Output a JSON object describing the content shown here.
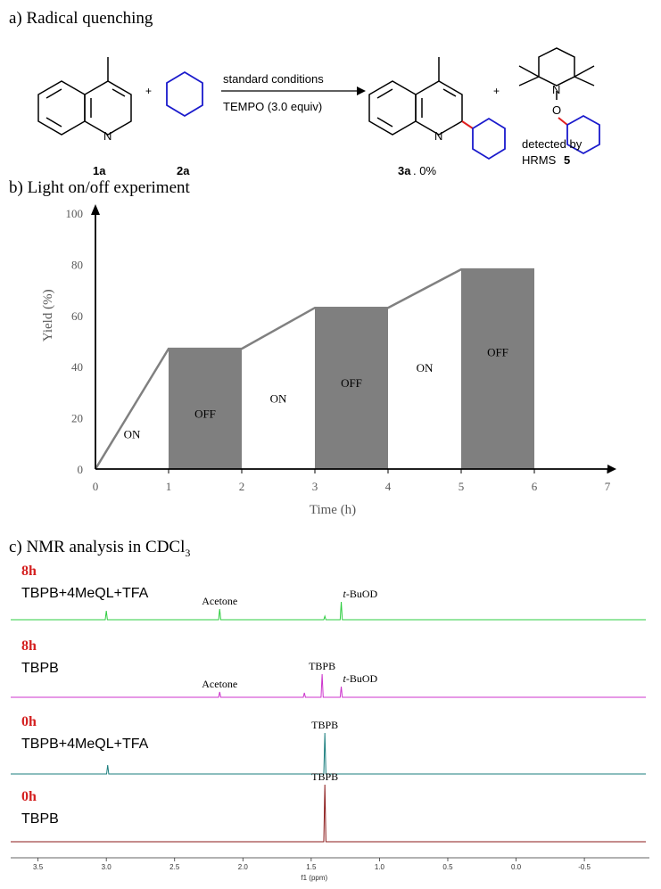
{
  "section_a": {
    "title": "a) Radical quenching",
    "reagent_1_label": "1a",
    "reagent_2_label": "2a",
    "plus": "+",
    "arrow_top": "standard conditions",
    "arrow_bottom": "TEMPO (3.0 equiv)",
    "product_label": "3a",
    "product_yield": ", 0%",
    "adduct_line1": "detected by",
    "adduct_line2": "HRMS",
    "adduct_label": "5",
    "atom_N": "N",
    "atom_O": "O"
  },
  "section_c": {
    "title_prefix": "c) NMR analysis in CDCl",
    "title_sub": "3"
  },
  "chart_data": [
    {
      "type": "area",
      "title": "b) Light on/off experiment",
      "xlabel": "Time (h)",
      "ylabel": "Yield (%)",
      "xlim": [
        0,
        7
      ],
      "ylim": [
        0,
        100
      ],
      "xticks": [
        "0",
        "1",
        "2",
        "3",
        "4",
        "5",
        "6",
        "7"
      ],
      "yticks": [
        "0",
        "20",
        "40",
        "60",
        "80",
        "100"
      ],
      "yield_points": [
        {
          "x": 0,
          "y": 0
        },
        {
          "x": 1,
          "y": 47
        },
        {
          "x": 2,
          "y": 47
        },
        {
          "x": 3,
          "y": 63
        },
        {
          "x": 4,
          "y": 63
        },
        {
          "x": 5,
          "y": 78
        },
        {
          "x": 6,
          "y": 78
        }
      ],
      "periods": [
        {
          "start": 0,
          "end": 1,
          "state": "ON",
          "label_y": 12
        },
        {
          "start": 1,
          "end": 2,
          "state": "OFF",
          "label_y": 20
        },
        {
          "start": 2,
          "end": 3,
          "state": "ON",
          "label_y": 26
        },
        {
          "start": 3,
          "end": 4,
          "state": "OFF",
          "label_y": 32
        },
        {
          "start": 4,
          "end": 5,
          "state": "ON",
          "label_y": 38
        },
        {
          "start": 5,
          "end": 6,
          "state": "OFF",
          "label_y": 44
        }
      ],
      "colors": {
        "off_fill": "#7f7f7f",
        "line": "#808080",
        "axis": "#000000",
        "tick_text": "#595959"
      }
    },
    {
      "type": "line",
      "title": "c) NMR analysis in CDCl3",
      "xlabel": "f1 (ppm)",
      "x_reversed": true,
      "xlim": [
        3.7,
        -0.95
      ],
      "xticks": [
        "3.5",
        "3.0",
        "2.5",
        "2.0",
        "1.5",
        "1.0",
        "0.5",
        "0.0",
        "-0.5"
      ],
      "xtick_values": [
        3.5,
        3.0,
        2.5,
        2.0,
        1.5,
        1.0,
        0.5,
        0.0,
        -0.5
      ],
      "series": [
        {
          "time": "8h",
          "name": "TBPB+4MeQL+TFA",
          "color": "#2ecc40",
          "peaks": [
            {
              "ppm": 3.0,
              "height": 10
            },
            {
              "ppm": 2.17,
              "height": 12
            },
            {
              "ppm": 1.28,
              "height": 20
            },
            {
              "ppm": 1.4,
              "height": 4
            }
          ],
          "annotations": [
            {
              "text": "Acetone",
              "ppm": 2.17
            },
            {
              "text_italic": "t",
              "text": "-BuOD",
              "ppm": 1.28
            }
          ]
        },
        {
          "time": "8h",
          "name": "TBPB",
          "color": "#cc33cc",
          "peaks": [
            {
              "ppm": 2.17,
              "height": 6
            },
            {
              "ppm": 1.42,
              "height": 26
            },
            {
              "ppm": 1.28,
              "height": 12
            },
            {
              "ppm": 1.55,
              "height": 5
            }
          ],
          "annotations": [
            {
              "text": "Acetone",
              "ppm": 2.17
            },
            {
              "text": "TBPB",
              "ppm": 1.42
            },
            {
              "text_italic": "t",
              "text": "-BuOD",
              "ppm": 1.28
            }
          ]
        },
        {
          "time": "0h",
          "name": "TBPB+4MeQL+TFA",
          "color": "#1a7d7d",
          "peaks": [
            {
              "ppm": 2.99,
              "height": 10
            },
            {
              "ppm": 1.4,
              "height": 46
            }
          ],
          "annotations": [
            {
              "text": "TBPB",
              "ppm": 1.4
            }
          ]
        },
        {
          "time": "0h",
          "name": "TBPB",
          "color": "#8b1a1a",
          "peaks": [
            {
              "ppm": 1.4,
              "height": 64
            }
          ],
          "annotations": [
            {
              "text": "TBPB",
              "ppm": 1.4
            }
          ]
        }
      ]
    }
  ]
}
